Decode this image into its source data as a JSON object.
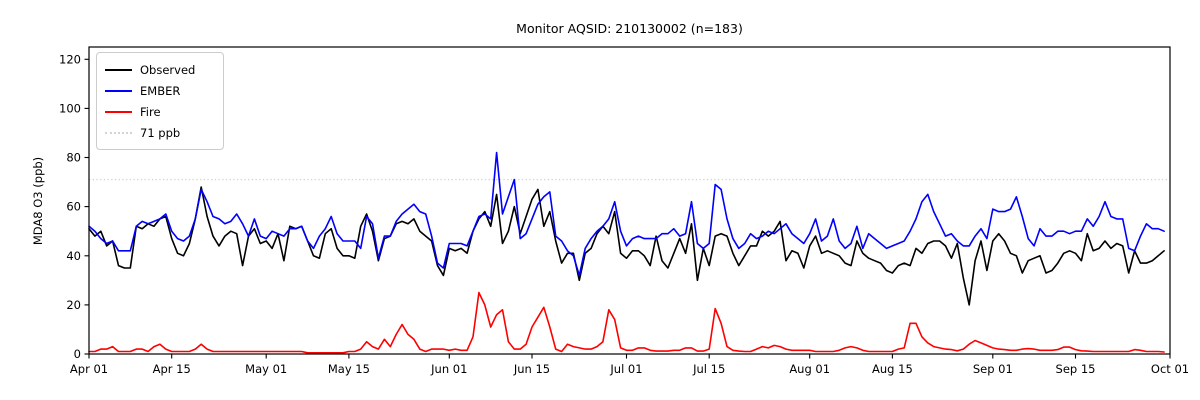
{
  "chart_data": {
    "type": "line",
    "title": "Monitor AQSID: 210130002 (n=183)",
    "xlabel": "",
    "ylabel": "MDA8 O3 (ppb)",
    "ylim": [
      0,
      125
    ],
    "yticks": [
      0,
      20,
      40,
      60,
      80,
      100,
      120
    ],
    "x_range_days": [
      0,
      183
    ],
    "x_start_date": "Apr 01",
    "x_end_date": "Sep 30",
    "cadence": "daily",
    "grid": "off",
    "xticks": [
      {
        "day": 0,
        "label": "Apr 01"
      },
      {
        "day": 14,
        "label": "Apr 15"
      },
      {
        "day": 30,
        "label": "May 01"
      },
      {
        "day": 44,
        "label": "May 15"
      },
      {
        "day": 61,
        "label": "Jun 01"
      },
      {
        "day": 75,
        "label": "Jun 15"
      },
      {
        "day": 91,
        "label": "Jul 01"
      },
      {
        "day": 105,
        "label": "Jul 15"
      },
      {
        "day": 122,
        "label": "Aug 01"
      },
      {
        "day": 136,
        "label": "Aug 15"
      },
      {
        "day": 153,
        "label": "Sep 01"
      },
      {
        "day": 167,
        "label": "Sep 15"
      },
      {
        "day": 183,
        "label": "Oct 01"
      }
    ],
    "threshold": {
      "value": 71,
      "label": "71 ppb",
      "color": "#d3d3d3",
      "style": "dotted"
    },
    "legend": {
      "position": "upper-left",
      "items": [
        {
          "label": "Observed",
          "color": "#000000",
          "style": "solid"
        },
        {
          "label": "EMBER",
          "color": "#0000ff",
          "style": "solid"
        },
        {
          "label": "Fire",
          "color": "#ff0000",
          "style": "solid"
        },
        {
          "label": "71 ppb",
          "color": "#d3d3d3",
          "style": "dotted"
        }
      ]
    },
    "series": [
      {
        "name": "Observed",
        "color": "#000000",
        "values": [
          51,
          48,
          50,
          44,
          46,
          36,
          35,
          35,
          52,
          51,
          53,
          52,
          55,
          56,
          47,
          41,
          40,
          45,
          55,
          68,
          56,
          48,
          44,
          48,
          50,
          49,
          36,
          48,
          51,
          45,
          46,
          43,
          49,
          38,
          52,
          51,
          52,
          46,
          40,
          39,
          49,
          51,
          43,
          40,
          40,
          39,
          52,
          57,
          50,
          38,
          47,
          48,
          53,
          54,
          53,
          55,
          50,
          48,
          46,
          36,
          32,
          43,
          42,
          43,
          41,
          50,
          55,
          58,
          52,
          65,
          45,
          50,
          60,
          49,
          56,
          63,
          67,
          52,
          58,
          46,
          37,
          41,
          41,
          30,
          41,
          43,
          49,
          52,
          49,
          58,
          41,
          39,
          42,
          42,
          40,
          36,
          48,
          38,
          35,
          41,
          47,
          41,
          53,
          30,
          43,
          36,
          48,
          49,
          48,
          41,
          36,
          40,
          44,
          44,
          50,
          48,
          50,
          54,
          38,
          42,
          41,
          35,
          44,
          48,
          41,
          42,
          41,
          40,
          37,
          36,
          46,
          41,
          39,
          38,
          37,
          34,
          33,
          36,
          37,
          36,
          43,
          41,
          45,
          46,
          46,
          44,
          39,
          45,
          31,
          20,
          38,
          46,
          34,
          46,
          49,
          46,
          41,
          40,
          33,
          38,
          39,
          40,
          33,
          34,
          37,
          41,
          42,
          41,
          38,
          49,
          42,
          43,
          46,
          43,
          45,
          44,
          33,
          42,
          37,
          37,
          38,
          40,
          42
        ]
      },
      {
        "name": "EMBER",
        "color": "#0000ff",
        "values": [
          52,
          50,
          47,
          45,
          46,
          42,
          42,
          42,
          52,
          54,
          53,
          54,
          55,
          57,
          50,
          47,
          46,
          48,
          55,
          67,
          62,
          56,
          55,
          53,
          54,
          57,
          53,
          48,
          55,
          48,
          47,
          50,
          49,
          48,
          51,
          51,
          52,
          46,
          43,
          48,
          51,
          56,
          49,
          46,
          46,
          46,
          43,
          56,
          53,
          39,
          48,
          48,
          54,
          57,
          59,
          61,
          58,
          57,
          48,
          37,
          35,
          45,
          45,
          45,
          44,
          50,
          56,
          57,
          55,
          82,
          57,
          64,
          71,
          47,
          49,
          55,
          61,
          64,
          66,
          48,
          46,
          42,
          40,
          32,
          43,
          47,
          50,
          52,
          55,
          62,
          50,
          44,
          47,
          48,
          47,
          47,
          47,
          49,
          49,
          51,
          48,
          49,
          62,
          45,
          43,
          45,
          69,
          67,
          55,
          47,
          43,
          45,
          49,
          47,
          48,
          50,
          49,
          51,
          53,
          49,
          47,
          45,
          49,
          55,
          46,
          48,
          55,
          46,
          43,
          45,
          52,
          43,
          49,
          47,
          45,
          43,
          44,
          45,
          46,
          50,
          55,
          62,
          65,
          58,
          53,
          48,
          49,
          46,
          44,
          44,
          48,
          51,
          47,
          59,
          58,
          58,
          59,
          64,
          56,
          47,
          44,
          51,
          48,
          48,
          50,
          50,
          49,
          50,
          50,
          55,
          52,
          56,
          62,
          56,
          55,
          55,
          43,
          42,
          48,
          53,
          51,
          51,
          50
        ]
      },
      {
        "name": "Fire",
        "color": "#ff0000",
        "values": [
          1,
          1,
          2,
          2,
          3,
          1,
          1,
          1,
          2,
          2,
          1,
          3,
          4,
          2,
          1,
          1,
          1,
          1,
          2,
          4,
          2,
          1,
          1,
          1,
          1,
          1,
          1,
          1,
          1,
          1,
          1,
          1,
          1,
          1,
          1,
          1,
          1,
          0.5,
          0.5,
          0.5,
          0.5,
          0.5,
          0.5,
          0.5,
          1,
          1,
          2,
          5,
          3,
          2,
          6,
          3,
          8,
          12,
          8,
          6,
          2,
          1,
          2,
          2,
          2,
          1.5,
          2,
          1.5,
          1.5,
          7,
          25,
          20,
          11,
          16,
          18,
          5,
          2,
          2,
          4,
          11,
          15,
          19,
          11,
          2,
          1,
          4,
          3,
          2.5,
          2,
          2,
          3,
          5,
          18,
          14,
          2.5,
          1.5,
          1.5,
          2.5,
          2.5,
          1.5,
          1.2,
          1.2,
          1.2,
          1.5,
          1.5,
          2.5,
          2.5,
          1.2,
          1.2,
          2,
          18.5,
          12.5,
          3,
          1.5,
          1.2,
          1,
          1,
          2,
          3,
          2.5,
          3.5,
          3,
          2,
          1.5,
          1.5,
          1.5,
          1.5,
          1,
          1,
          1,
          1,
          1.5,
          2.5,
          3,
          2.5,
          1.5,
          1,
          1,
          1,
          1,
          1,
          2,
          2.5,
          12.5,
          12.5,
          7,
          4.5,
          3,
          2.5,
          2,
          1.8,
          1.3,
          2,
          4,
          5.5,
          4.5,
          3.5,
          2.5,
          2,
          1.8,
          1.5,
          1.5,
          2,
          2.2,
          2,
          1.5,
          1.5,
          1.5,
          1.8,
          2.8,
          2.8,
          1.8,
          1.3,
          1.2,
          1,
          1,
          1,
          1,
          1,
          1,
          1,
          1.8,
          1.5,
          1,
          1,
          1,
          0.8
        ]
      }
    ]
  }
}
